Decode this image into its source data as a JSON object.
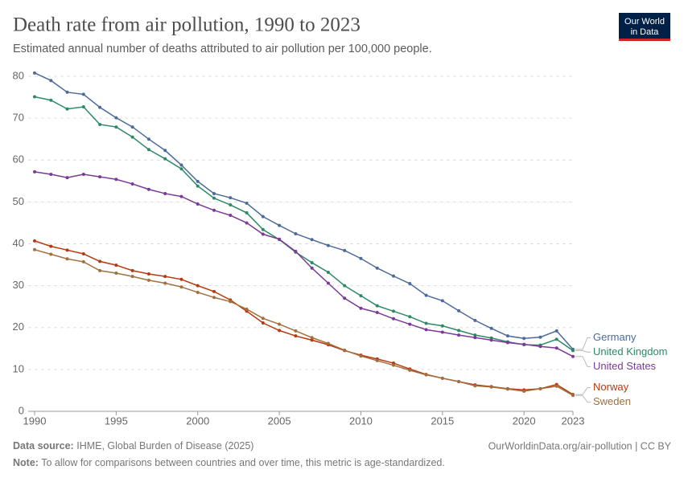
{
  "chart_data": {
    "type": "line",
    "title": "Death rate from air pollution, 1990 to 2023",
    "subtitle": "Estimated annual number of deaths attributed to air pollution per 100,000 people.",
    "logo": [
      "Our World",
      "in Data"
    ],
    "source_label": "Data source:",
    "source": "IHME, Global Burden of Disease (2025)",
    "url": "OurWorldinData.org/air-pollution | CC BY",
    "note_label": "Note:",
    "note": "To allow for comparisons between countries and over time, this metric is age-standardized.",
    "x": [
      1990,
      1991,
      1992,
      1993,
      1994,
      1995,
      1996,
      1997,
      1998,
      1999,
      2000,
      2001,
      2002,
      2003,
      2004,
      2005,
      2006,
      2007,
      2008,
      2009,
      2010,
      2011,
      2012,
      2013,
      2014,
      2015,
      2016,
      2017,
      2018,
      2019,
      2020,
      2021,
      2022,
      2023
    ],
    "xlim": [
      1990,
      2023
    ],
    "xticks": [
      1990,
      1995,
      2000,
      2005,
      2010,
      2015,
      2020,
      2023
    ],
    "ylim": [
      0,
      80
    ],
    "yticks": [
      0,
      10,
      20,
      30,
      40,
      50,
      60,
      70,
      80
    ],
    "grid": true,
    "series": [
      {
        "name": "Germany",
        "color": "#4c6a9c",
        "values": [
          80.8,
          79,
          76.2,
          75.7,
          72.6,
          70.1,
          67.9,
          65,
          62.3,
          58.8,
          54.9,
          52,
          51,
          49.7,
          46.5,
          44.4,
          42.4,
          41,
          39.6,
          38.4,
          36.5,
          34.2,
          32.3,
          30.5,
          27.7,
          26.4,
          24,
          21.7,
          19.8,
          18,
          17.4,
          17.7,
          19.2,
          14.8
        ]
      },
      {
        "name": "United Kingdom",
        "color": "#2d8a65",
        "values": [
          75.1,
          74.3,
          72.2,
          72.7,
          68.5,
          67.9,
          65.5,
          62.5,
          60.3,
          57.9,
          53.8,
          50.9,
          49.3,
          47.4,
          43.4,
          41,
          38,
          35.5,
          33.2,
          30,
          27.6,
          25.2,
          23.9,
          22.6,
          21,
          20.4,
          19.3,
          18.2,
          17.5,
          16.6,
          15.9,
          15.8,
          17.2,
          14.5
        ]
      },
      {
        "name": "United States",
        "color": "#7a3a97",
        "values": [
          57.2,
          56.6,
          55.8,
          56.6,
          56,
          55.4,
          54.3,
          53,
          52,
          51.3,
          49.5,
          48,
          46.8,
          45,
          42.3,
          41.1,
          38.2,
          34.2,
          30.6,
          27,
          24.6,
          23.6,
          22.1,
          20.8,
          19.5,
          18.9,
          18.2,
          17.6,
          17,
          16.4,
          16,
          15.5,
          15.1,
          13.1
        ]
      },
      {
        "name": "Norway",
        "color": "#b53a10",
        "values": [
          40.7,
          39.4,
          38.5,
          37.6,
          35.8,
          34.9,
          33.6,
          32.8,
          32.2,
          31.5,
          30,
          28.6,
          26.6,
          23.9,
          21.1,
          19.3,
          18,
          17,
          15.9,
          14.5,
          13.4,
          12.5,
          11.5,
          10.1,
          8.8,
          7.9,
          7.1,
          6.3,
          5.9,
          5.4,
          5.1,
          5.4,
          6.4,
          4
        ]
      },
      {
        "name": "Sweden",
        "color": "#a2703d",
        "values": [
          38.6,
          37.5,
          36.4,
          35.7,
          33.6,
          33,
          32.2,
          31.3,
          30.6,
          29.7,
          28.4,
          27.2,
          26.2,
          24.4,
          22.2,
          20.8,
          19.2,
          17.6,
          16.2,
          14.6,
          13.2,
          12.1,
          11,
          9.8,
          8.7,
          7.9,
          7.1,
          6.1,
          5.8,
          5.3,
          4.8,
          5.4,
          6,
          3.8
        ]
      }
    ]
  }
}
